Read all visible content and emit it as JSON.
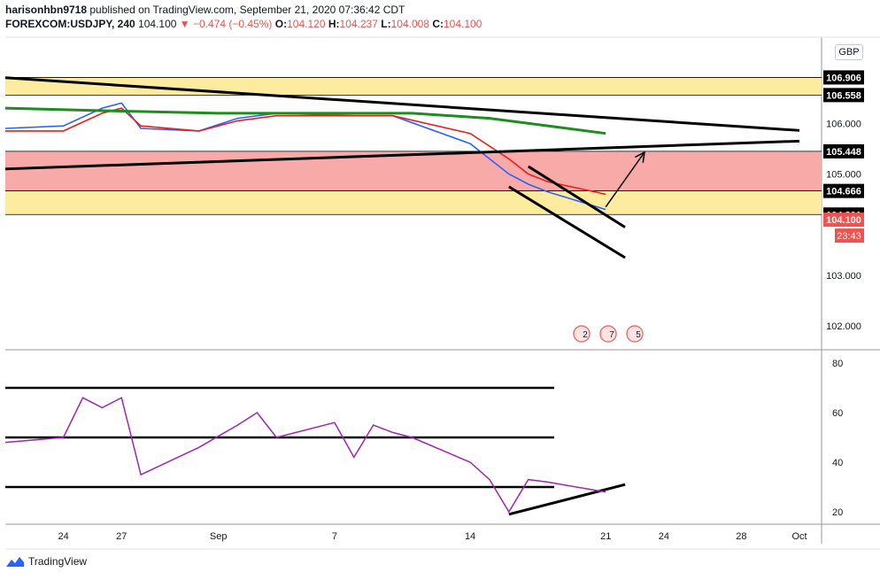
{
  "header": {
    "publisher": "harisonhbn9718",
    "published_text": "published on TradingView.com, September 21, 2020 07:36:42 CDT",
    "symbol": "FOREXCOM:USDJPY, 240",
    "last": "104.100",
    "change": "−0.474 (−0.45%)",
    "o_label": "O:",
    "o_value": "104.120",
    "h_label": "H:",
    "h_value": "104.237",
    "l_label": "L:",
    "l_value": "104.008",
    "c_label": "C:",
    "c_value": "104.100"
  },
  "currency_button": "GBP",
  "footer": {
    "brand": "TradingView"
  },
  "chart_data": {
    "type": "line",
    "price_axis": {
      "ticks": [
        "106.000",
        "105.000",
        "103.000",
        "102.000"
      ],
      "tick_values": [
        106.0,
        105.0,
        103.0,
        102.0
      ],
      "ylim": [
        101.55,
        107.7
      ],
      "level_labels": [
        {
          "text": "106.906",
          "value": 106.906,
          "color": "#000000"
        },
        {
          "text": "106.558",
          "value": 106.558,
          "color": "#000000"
        },
        {
          "text": "105.448",
          "value": 105.448,
          "color": "#000000"
        },
        {
          "text": "104.666",
          "value": 104.666,
          "color": "#000000"
        },
        {
          "text": "104.201",
          "value": 104.201,
          "color": "#000000"
        },
        {
          "text": "104.100",
          "value": 104.1,
          "color": "#ef5350"
        }
      ],
      "countdown": "23:43"
    },
    "zones": [
      {
        "from": 106.558,
        "to": 106.906,
        "color": "#fdeca0"
      },
      {
        "from": 104.666,
        "to": 105.448,
        "color": "#f8aaa8"
      },
      {
        "from": 104.201,
        "to": 104.666,
        "color": "#fdeca0"
      }
    ],
    "x_axis": {
      "labels": [
        "24",
        "27",
        "Sep",
        "7",
        "14",
        "21",
        "24",
        "28",
        "Oct"
      ],
      "x_dates": [
        "2020-08-24",
        "2020-08-27",
        "2020-09-01",
        "2020-09-07",
        "2020-09-14",
        "2020-09-21",
        "2020-09-24",
        "2020-09-28",
        "2020-10-01"
      ]
    },
    "price_series": [
      {
        "name": "",
        "color": "#2962ff",
        "x": [
          "2020-08-21",
          "2020-08-24",
          "2020-08-26",
          "2020-08-27",
          "2020-08-28",
          "2020-08-31",
          "2020-09-02",
          "2020-09-04",
          "2020-09-08",
          "2020-09-10",
          "2020-09-14",
          "2020-09-16",
          "2020-09-17",
          "2020-09-18",
          "2020-09-21"
        ],
        "values": [
          105.9,
          105.95,
          106.3,
          106.4,
          105.9,
          105.85,
          106.1,
          106.2,
          106.15,
          106.15,
          105.6,
          105.0,
          104.8,
          104.65,
          104.3
        ]
      },
      {
        "name": "",
        "color": "#e91e1e",
        "x": [
          "2020-08-21",
          "2020-08-24",
          "2020-08-26",
          "2020-08-27",
          "2020-08-28",
          "2020-08-31",
          "2020-09-02",
          "2020-09-04",
          "2020-09-08",
          "2020-09-10",
          "2020-09-14",
          "2020-09-16",
          "2020-09-17",
          "2020-09-18",
          "2020-09-21"
        ],
        "values": [
          105.85,
          105.85,
          106.2,
          106.3,
          105.95,
          105.85,
          106.05,
          106.15,
          106.15,
          106.15,
          105.8,
          105.3,
          105.0,
          104.85,
          104.6
        ]
      },
      {
        "name": "",
        "color": "#1e8c1e",
        "x": [
          "2020-08-21",
          "2020-08-26",
          "2020-09-01",
          "2020-09-07",
          "2020-09-11",
          "2020-09-15",
          "2020-09-21"
        ],
        "values": [
          106.3,
          106.25,
          106.2,
          106.2,
          106.2,
          106.1,
          105.8
        ]
      }
    ],
    "rsi": {
      "color": "#9c27b0",
      "ticks": [
        80,
        60,
        40,
        20
      ],
      "ylim": [
        15,
        85
      ],
      "x": [
        "2020-08-21",
        "2020-08-24",
        "2020-08-25",
        "2020-08-26",
        "2020-08-27",
        "2020-08-28",
        "2020-08-31",
        "2020-09-02",
        "2020-09-03",
        "2020-09-04",
        "2020-09-07",
        "2020-09-08",
        "2020-09-09",
        "2020-09-10",
        "2020-09-11",
        "2020-09-14",
        "2020-09-15",
        "2020-09-16",
        "2020-09-17",
        "2020-09-18",
        "2020-09-21"
      ],
      "values": [
        48,
        50,
        66,
        62,
        66,
        35,
        46,
        55,
        60,
        50,
        56,
        42,
        55,
        52,
        50,
        40,
        33,
        20,
        33,
        32,
        28
      ],
      "levels": [
        70,
        50,
        30
      ]
    },
    "drawings": [
      {
        "kind": "trendline",
        "from": [
          "2020-08-21",
          106.9
        ],
        "to": [
          "2020-10-01",
          105.86
        ]
      },
      {
        "kind": "trendline",
        "from": [
          "2020-08-21",
          105.1
        ],
        "to": [
          "2020-10-01",
          105.65
        ]
      },
      {
        "kind": "trendline",
        "from": [
          "2020-09-17",
          105.15
        ],
        "to": [
          "2020-09-22",
          103.95
        ]
      },
      {
        "kind": "trendline",
        "from": [
          "2020-09-16",
          104.75
        ],
        "to": [
          "2020-09-22",
          103.35
        ]
      },
      {
        "kind": "arrow",
        "from": [
          "2020-09-21",
          104.35
        ],
        "to": [
          "2020-09-23",
          105.43
        ]
      },
      {
        "kind": "rsi_trendline",
        "from": [
          "2020-09-16",
          19
        ],
        "to": [
          "2020-09-22",
          31
        ]
      }
    ],
    "events": [
      "2",
      "7",
      "5"
    ]
  }
}
